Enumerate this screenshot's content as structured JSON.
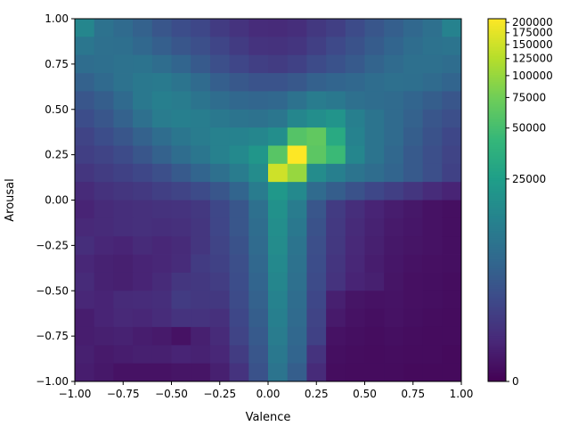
{
  "chart_data": {
    "type": "heatmap",
    "title": "",
    "xlabel": "Valence",
    "ylabel": "Arousal",
    "xlim": [
      -1.0,
      1.0
    ],
    "ylim": [
      -1.0,
      1.0
    ],
    "grid": false,
    "colormap": "viridis",
    "color_scale": "symlog",
    "color_range": [
      0,
      210000
    ],
    "x_ticks": [
      -1.0,
      -0.75,
      -0.5,
      -0.25,
      0.0,
      0.25,
      0.5,
      0.75,
      1.0
    ],
    "x_tick_labels": [
      "−1.00",
      "−0.75",
      "−0.50",
      "−0.25",
      "0.00",
      "0.25",
      "0.50",
      "0.75",
      "1.00"
    ],
    "y_ticks": [
      1.0,
      0.75,
      0.5,
      0.25,
      0.0,
      -0.25,
      -0.5,
      -0.75,
      -1.0
    ],
    "y_tick_labels": [
      "1.00",
      "0.75",
      "0.50",
      "0.25",
      "0.00",
      "−0.25",
      "−0.50",
      "−0.75",
      "−1.00"
    ],
    "colorbar_ticks": [
      200000,
      175000,
      150000,
      125000,
      100000,
      75000,
      50000,
      25000,
      0
    ],
    "colorbar_tick_labels": [
      "200000",
      "175000",
      "150000",
      "125000",
      "100000",
      "75000",
      "50000",
      "25000",
      "0"
    ],
    "x_bin_centers": [
      -0.95,
      -0.85,
      -0.75,
      -0.65,
      -0.55,
      -0.45,
      -0.35,
      -0.25,
      -0.15,
      -0.05,
      0.05,
      0.15,
      0.25,
      0.35,
      0.45,
      0.55,
      0.65,
      0.75,
      0.85,
      0.95
    ],
    "y_bin_centers": [
      0.95,
      0.85,
      0.75,
      0.65,
      0.55,
      0.45,
      0.35,
      0.25,
      0.15,
      0.05,
      -0.05,
      -0.15,
      -0.25,
      -0.35,
      -0.45,
      -0.55,
      -0.65,
      -0.75,
      -0.85,
      -0.95
    ],
    "counts": [
      [
        15000,
        9500,
        8000,
        6500,
        5000,
        4000,
        3500,
        2500,
        2000,
        1600,
        1500,
        1700,
        2300,
        2800,
        3800,
        5000,
        6200,
        7500,
        9000,
        14000
      ],
      [
        10500,
        9000,
        8800,
        7500,
        6200,
        5000,
        4200,
        3300,
        2500,
        2000,
        1900,
        2100,
        2800,
        3600,
        4500,
        5800,
        7000,
        8500,
        9500,
        10000
      ],
      [
        8500,
        8800,
        9500,
        9800,
        8500,
        7000,
        5500,
        4200,
        3400,
        2800,
        2600,
        3000,
        3800,
        4600,
        5500,
        6800,
        8000,
        9000,
        9000,
        8500
      ],
      [
        6500,
        7800,
        9500,
        11000,
        11500,
        10000,
        8000,
        6200,
        5200,
        4700,
        4700,
        5200,
        6400,
        7000,
        7500,
        8500,
        9000,
        8800,
        8000,
        7000
      ],
      [
        5000,
        6000,
        7800,
        11000,
        13000,
        12000,
        10000,
        8500,
        7500,
        7200,
        7500,
        9500,
        12000,
        11000,
        9000,
        8500,
        8000,
        7000,
        6000,
        5000
      ],
      [
        4000,
        5000,
        6500,
        9000,
        12000,
        13000,
        12500,
        11000,
        10000,
        9500,
        10500,
        15000,
        18000,
        20000,
        13000,
        10000,
        8000,
        6500,
        5000,
        4200
      ],
      [
        3200,
        4000,
        5000,
        6500,
        8500,
        10500,
        12000,
        13500,
        14000,
        15000,
        18000,
        58000,
        65000,
        32000,
        14000,
        10000,
        8000,
        6000,
        4500,
        3500
      ],
      [
        2800,
        3200,
        3800,
        5000,
        6500,
        8500,
        10500,
        13500,
        16000,
        21000,
        60000,
        210000,
        62000,
        45000,
        15000,
        10000,
        7500,
        5500,
        4200,
        3200
      ],
      [
        2200,
        2600,
        3000,
        3500,
        4200,
        5500,
        7000,
        9000,
        12000,
        17000,
        150000,
        100000,
        17000,
        13000,
        10000,
        8500,
        7000,
        5500,
        4200,
        3000
      ],
      [
        1500,
        1900,
        2200,
        2400,
        2800,
        3200,
        3800,
        5000,
        7000,
        12000,
        22000,
        16000,
        8000,
        6000,
        4500,
        3500,
        2800,
        2200,
        1600,
        1200
      ],
      [
        1200,
        1500,
        1700,
        1800,
        1900,
        2000,
        2300,
        3500,
        5000,
        9000,
        19000,
        12000,
        5000,
        2500,
        1700,
        1200,
        900,
        700,
        500,
        400
      ],
      [
        1400,
        1500,
        1700,
        1800,
        1700,
        1800,
        2200,
        3400,
        5000,
        8500,
        18000,
        11000,
        4500,
        2400,
        1500,
        1100,
        800,
        650,
        500,
        400
      ],
      [
        1700,
        1300,
        1200,
        1500,
        1300,
        1500,
        2200,
        3200,
        4500,
        8000,
        17000,
        10000,
        4200,
        2300,
        1400,
        1000,
        700,
        600,
        500,
        400
      ],
      [
        1300,
        1100,
        1000,
        1200,
        1300,
        1600,
        2500,
        3000,
        4200,
        7500,
        16000,
        9500,
        4000,
        2100,
        1300,
        900,
        650,
        500,
        450,
        400
      ],
      [
        1500,
        1100,
        1000,
        1200,
        1500,
        2200,
        2300,
        2700,
        4000,
        7000,
        15000,
        9000,
        3800,
        2000,
        1200,
        1000,
        600,
        450,
        400,
        350
      ],
      [
        1300,
        1200,
        1500,
        1600,
        1700,
        2500,
        2300,
        2300,
        3800,
        6500,
        14000,
        8500,
        3500,
        1000,
        600,
        500,
        550,
        450,
        400,
        350
      ],
      [
        900,
        1200,
        1400,
        1300,
        1600,
        2000,
        2000,
        1800,
        3500,
        6000,
        13000,
        8000,
        3200,
        800,
        500,
        400,
        500,
        400,
        350,
        300
      ],
      [
        900,
        1000,
        1100,
        900,
        800,
        500,
        1000,
        1500,
        3200,
        5500,
        12000,
        7500,
        3000,
        500,
        400,
        350,
        400,
        350,
        300,
        300
      ],
      [
        1000,
        800,
        900,
        1000,
        1000,
        1200,
        1100,
        1300,
        2600,
        5000,
        11000,
        7000,
        2000,
        400,
        350,
        300,
        350,
        300,
        300,
        250
      ],
      [
        900,
        700,
        500,
        500,
        500,
        600,
        600,
        1000,
        2000,
        4500,
        10000,
        6000,
        1500,
        350,
        300,
        300,
        300,
        250,
        250,
        250
      ]
    ]
  }
}
